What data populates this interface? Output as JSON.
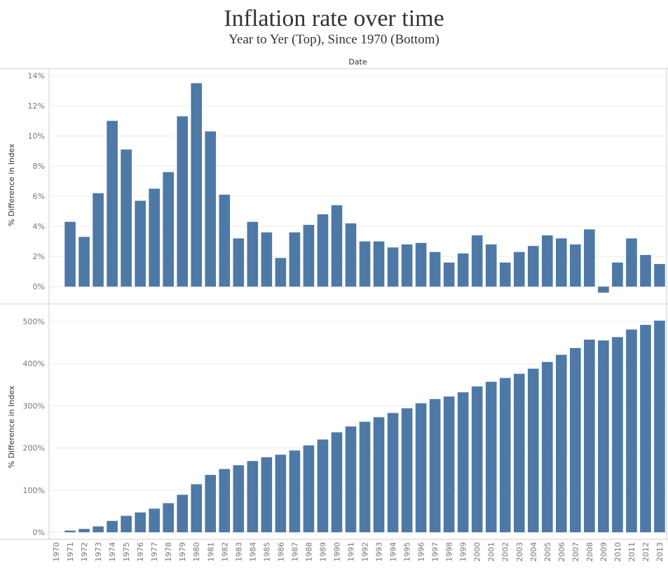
{
  "title": "Inflation rate over time",
  "subtitle": "Year to Yer (Top), Since 1970 (Bottom)",
  "x_header": "Date",
  "chart_data": [
    {
      "type": "bar",
      "panel": "top",
      "xlabel": "Date",
      "ylabel": "% Difference in Index",
      "ylim": [
        -0.5,
        14
      ],
      "yticks": [
        0,
        2,
        4,
        6,
        8,
        10,
        12,
        14
      ],
      "ytick_labels": [
        "0%",
        "2%",
        "4%",
        "6%",
        "8%",
        "10%",
        "12%",
        "14%"
      ],
      "grid": true,
      "color": "#4e79a7",
      "categories": [
        "1970",
        "1971",
        "1972",
        "1973",
        "1974",
        "1975",
        "1976",
        "1977",
        "1978",
        "1979",
        "1980",
        "1981",
        "1982",
        "1983",
        "1984",
        "1985",
        "1986",
        "1987",
        "1988",
        "1989",
        "1990",
        "1991",
        "1992",
        "1993",
        "1994",
        "1995",
        "1996",
        "1997",
        "1998",
        "1999",
        "2000",
        "2001",
        "2002",
        "2003",
        "2004",
        "2005",
        "2006",
        "2007",
        "2008",
        "2009",
        "2010",
        "2011",
        "2012",
        "2013"
      ],
      "values": [
        null,
        4.3,
        3.3,
        6.2,
        11.0,
        9.1,
        5.7,
        6.5,
        7.6,
        11.3,
        13.5,
        10.3,
        6.1,
        3.2,
        4.3,
        3.6,
        1.9,
        3.6,
        4.1,
        4.8,
        5.4,
        4.2,
        3.0,
        3.0,
        2.6,
        2.8,
        2.9,
        2.3,
        1.6,
        2.2,
        3.4,
        2.8,
        1.6,
        2.3,
        2.7,
        3.4,
        3.2,
        2.8,
        3.8,
        -0.4,
        1.6,
        3.2,
        2.1,
        1.5
      ]
    },
    {
      "type": "bar",
      "panel": "bottom",
      "xlabel": "Date",
      "ylabel": "% Difference in Index",
      "ylim": [
        -15,
        515
      ],
      "yticks": [
        0,
        100,
        200,
        300,
        400,
        500
      ],
      "ytick_labels": [
        "0%",
        "100%",
        "200%",
        "300%",
        "400%",
        "500%"
      ],
      "grid": true,
      "color": "#4e79a7",
      "categories": [
        "1970",
        "1971",
        "1972",
        "1973",
        "1974",
        "1975",
        "1976",
        "1977",
        "1978",
        "1979",
        "1980",
        "1981",
        "1982",
        "1983",
        "1984",
        "1985",
        "1986",
        "1987",
        "1988",
        "1989",
        "1990",
        "1991",
        "1992",
        "1993",
        "1994",
        "1995",
        "1996",
        "1997",
        "1998",
        "1999",
        "2000",
        "2001",
        "2002",
        "2003",
        "2004",
        "2005",
        "2006",
        "2007",
        "2008",
        "2009",
        "2010",
        "2011",
        "2012",
        "2013"
      ],
      "values": [
        null,
        4,
        8,
        14,
        27,
        39,
        47,
        56,
        69,
        89,
        114,
        136,
        150,
        159,
        169,
        178,
        184,
        194,
        206,
        220,
        237,
        251,
        262,
        273,
        283,
        294,
        306,
        316,
        322,
        332,
        346,
        357,
        366,
        376,
        388,
        404,
        421,
        437,
        457,
        455,
        463,
        481,
        492,
        502
      ]
    }
  ]
}
